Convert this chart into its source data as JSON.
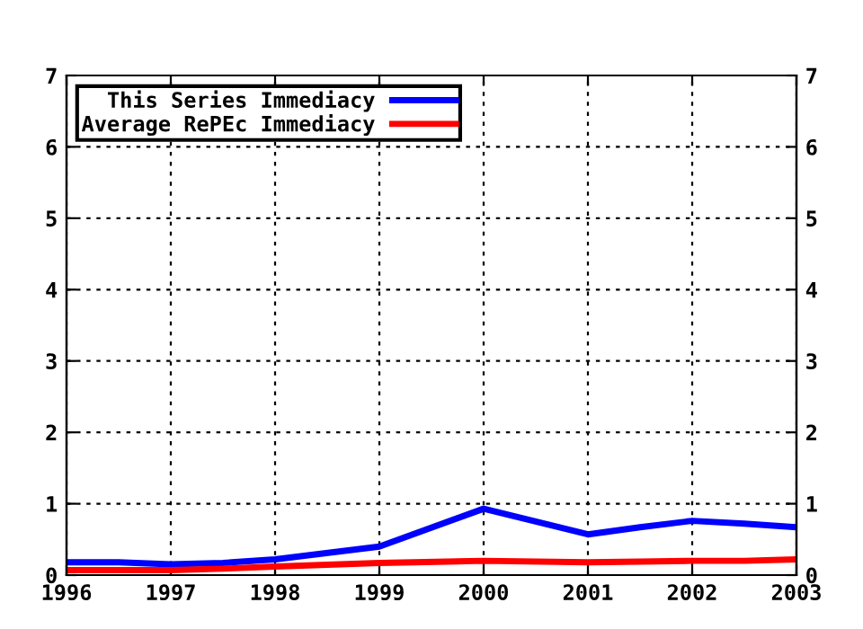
{
  "chart_data": {
    "type": "line",
    "x": [
      1996,
      1996.5,
      1997,
      1997.5,
      1998,
      1999,
      2000,
      2001,
      2001.5,
      2002,
      2002.5,
      2003
    ],
    "series": [
      {
        "name": "This Series Immediacy",
        "color": "#0000ff",
        "values": [
          0.18,
          0.18,
          0.15,
          0.17,
          0.22,
          0.4,
          0.93,
          0.57,
          0.67,
          0.76,
          0.72,
          0.67
        ]
      },
      {
        "name": "Average RePEc Immediacy",
        "color": "#ff0000",
        "values": [
          0.07,
          0.07,
          0.07,
          0.09,
          0.12,
          0.17,
          0.2,
          0.18,
          0.19,
          0.2,
          0.2,
          0.22
        ]
      }
    ],
    "xlim": [
      1996,
      2003
    ],
    "xticks": [
      1996,
      1997,
      1998,
      1999,
      2000,
      2001,
      2002,
      2003
    ],
    "ylim": [
      0,
      7
    ],
    "yticks": [
      0,
      1,
      2,
      3,
      4,
      5,
      6,
      7
    ],
    "y2lim": [
      0,
      7
    ],
    "y2ticks": [
      0,
      1,
      2,
      3,
      4,
      5,
      6,
      7
    ],
    "grid": true,
    "legend": "top left",
    "marker": "none",
    "line_style": "solid"
  }
}
